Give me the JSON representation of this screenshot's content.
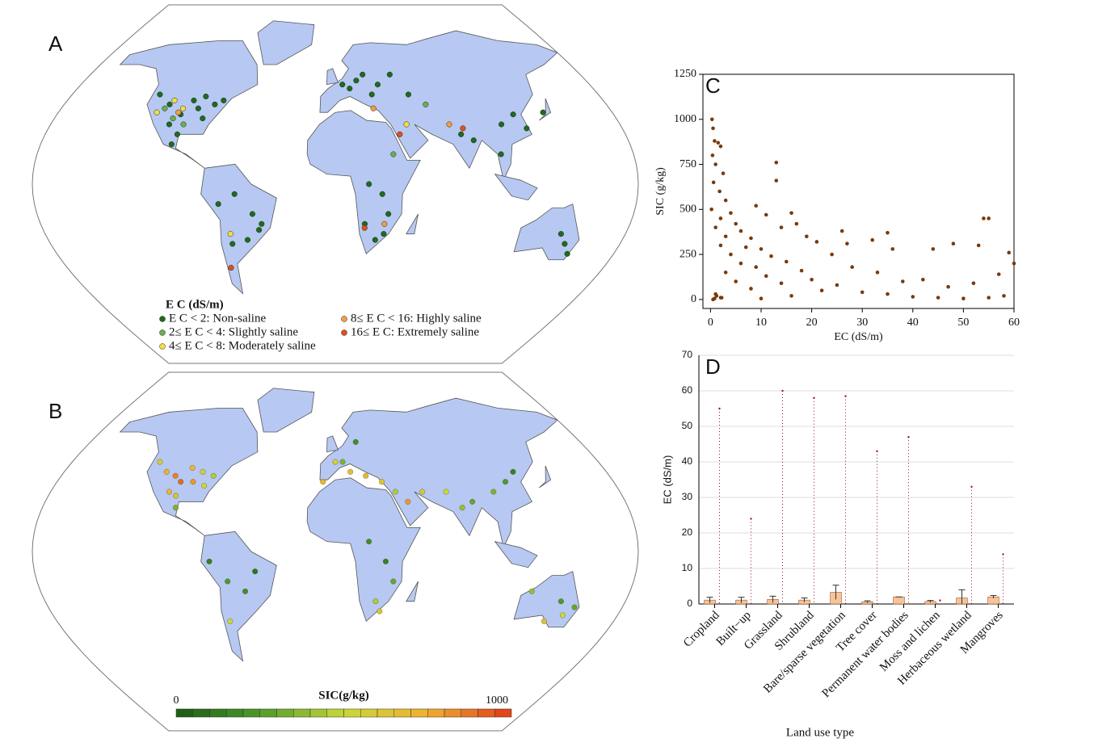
{
  "chart_data": [
    {
      "type": "map",
      "panel": "A",
      "legend_title": "E C (dS/m)",
      "series": [
        {
          "name": "E C < 2: Non-saline",
          "color": "#1e6b1e",
          "lon": [
            -120,
            -110,
            -100,
            -95,
            -90,
            -85,
            -80,
            -75,
            -105,
            -98,
            -88,
            -100,
            -70,
            -60,
            -50,
            -45,
            -65,
            5,
            10,
            15,
            20,
            25,
            30,
            40,
            50,
            20,
            28,
            32,
            30,
            25,
            18,
            78,
            85,
            100,
            105,
            115,
            120,
            135,
            140,
            145,
            150,
            -47,
            -55
          ],
          "lat": [
            45,
            40,
            35,
            42,
            38,
            33,
            40,
            42,
            30,
            25,
            44,
            20,
            -10,
            -5,
            -15,
            -20,
            -30,
            50,
            48,
            52,
            55,
            45,
            50,
            55,
            45,
            0,
            -5,
            -15,
            -25,
            -28,
            -20,
            25,
            22,
            15,
            30,
            35,
            28,
            36,
            -25,
            -30,
            -35,
            -23,
            -28
          ]
        },
        {
          "name": "2≤ E C < 4: Slightly saline",
          "color": "#6ab04c",
          "lon": [
            -112,
            -104,
            -96,
            35,
            60
          ],
          "lat": [
            38,
            33,
            30,
            15,
            40
          ]
        },
        {
          "name": "4≤ E C < 8: Moderately saline",
          "color": "#f0e040",
          "lon": [
            -108,
            -116,
            -100,
            45,
            -65
          ],
          "lat": [
            42,
            36,
            38,
            30,
            -25
          ]
        },
        {
          "name": "8≤ E C < 16: Highly saline",
          "color": "#f0a040",
          "lon": [
            -102,
            30,
            72,
            25
          ],
          "lat": [
            36,
            -20,
            30,
            38
          ]
        },
        {
          "name": "16≤ E C: Extremely saline",
          "color": "#e0501e",
          "lon": [
            40,
            18,
            80,
            -70
          ],
          "lat": [
            25,
            -22,
            28,
            -42
          ]
        }
      ]
    },
    {
      "type": "map",
      "panel": "B",
      "colorbar_label": "SIC(g/kg)",
      "zlim": [
        0,
        1000
      ],
      "colormap": [
        "#1a5a14",
        "#4e9a2a",
        "#c8d83a",
        "#f0b030",
        "#e03a18"
      ],
      "lon": [
        -120,
        -112,
        -105,
        -100,
        -96,
        -92,
        -88,
        -84,
        -80,
        -100,
        -98,
        -105,
        -75,
        -65,
        -55,
        -48,
        -68,
        0,
        10,
        20,
        30,
        38,
        45,
        55,
        70,
        78,
        85,
        100,
        110,
        118,
        20,
        30,
        35,
        25,
        28,
        140,
        145,
        150,
        120,
        135,
        -8,
        5,
        15
      ],
      "lat": [
        45,
        40,
        38,
        35,
        42,
        35,
        40,
        33,
        38,
        28,
        22,
        30,
        -5,
        -15,
        -20,
        -10,
        -35,
        45,
        40,
        38,
        35,
        30,
        25,
        30,
        30,
        22,
        25,
        30,
        35,
        40,
        5,
        -5,
        -15,
        -25,
        -30,
        -25,
        -32,
        -28,
        -20,
        -35,
        35,
        45,
        55
      ],
      "values": [
        600,
        750,
        850,
        900,
        700,
        800,
        550,
        500,
        450,
        650,
        350,
        700,
        150,
        250,
        200,
        100,
        500,
        550,
        650,
        700,
        600,
        450,
        800,
        600,
        500,
        400,
        300,
        350,
        250,
        150,
        200,
        150,
        300,
        450,
        600,
        250,
        500,
        300,
        400,
        650,
        700,
        350,
        200
      ]
    },
    {
      "type": "scatter",
      "panel": "C",
      "x_label": "EC (dS/m)",
      "y_label": "SIC (g/kg)",
      "color": "#7a3a0a",
      "xlim": [
        -1.5,
        60
      ],
      "ylim": [
        -50,
        1250
      ],
      "xticks": [
        0,
        10,
        20,
        30,
        40,
        50,
        60
      ],
      "yticks": [
        0,
        250,
        500,
        750,
        1000,
        1250
      ],
      "x": [
        0.3,
        0.5,
        0.8,
        1.5,
        2,
        0.4,
        1,
        2.5,
        0.6,
        1.8,
        3,
        0.2,
        4,
        2,
        5,
        1,
        6,
        3,
        8,
        2,
        7,
        10,
        4,
        12,
        6,
        15,
        9,
        3,
        18,
        11,
        20,
        5,
        14,
        25,
        8,
        22,
        30,
        1,
        16,
        35,
        2,
        10,
        40,
        45,
        50,
        55,
        58,
        13,
        13,
        9,
        11,
        16,
        17,
        14,
        19,
        21,
        26,
        27,
        32,
        35,
        36,
        44,
        48,
        53,
        54,
        55,
        59,
        60,
        38,
        42,
        47,
        52,
        57,
        24,
        28,
        33,
        0.5,
        1.2,
        0.8,
        2.2
      ],
      "values": [
        1000,
        950,
        880,
        870,
        850,
        800,
        750,
        700,
        650,
        600,
        550,
        500,
        480,
        450,
        420,
        400,
        380,
        350,
        340,
        300,
        290,
        280,
        250,
        240,
        200,
        210,
        180,
        150,
        160,
        130,
        110,
        100,
        90,
        80,
        60,
        50,
        40,
        30,
        20,
        30,
        10,
        5,
        15,
        10,
        5,
        10,
        20,
        760,
        660,
        520,
        470,
        480,
        420,
        400,
        350,
        320,
        380,
        310,
        330,
        370,
        280,
        280,
        310,
        300,
        450,
        450,
        260,
        200,
        100,
        110,
        70,
        90,
        140,
        250,
        180,
        150,
        0,
        20,
        5,
        10
      ]
    },
    {
      "type": "bar",
      "panel": "D",
      "x_label": "Land use type",
      "y_label": "EC (dS/m)",
      "grid": true,
      "ylim": [
        0,
        70
      ],
      "yticks": [
        0,
        10,
        20,
        30,
        40,
        50,
        60,
        70
      ],
      "color": "#f6c39a",
      "point_color": "#a01010",
      "categories": [
        "Cropland",
        "Built−up",
        "Grassland",
        "Shrubland",
        "Bare/sparse vegetation",
        "Tree cover",
        "Permanent water bodies",
        "Moss and lichen",
        "Herbaceous wetland",
        "Mangroves"
      ],
      "values": [
        1.1,
        1.1,
        1.3,
        1.1,
        3.3,
        0.6,
        2,
        0.7,
        1.7,
        2
      ],
      "errors": [
        0.8,
        0.8,
        0.9,
        0.6,
        2,
        0.3,
        0,
        0.3,
        2.3,
        0.4
      ],
      "max_values": [
        55,
        24,
        60,
        58,
        58.5,
        43,
        47,
        1,
        33,
        14
      ]
    }
  ]
}
